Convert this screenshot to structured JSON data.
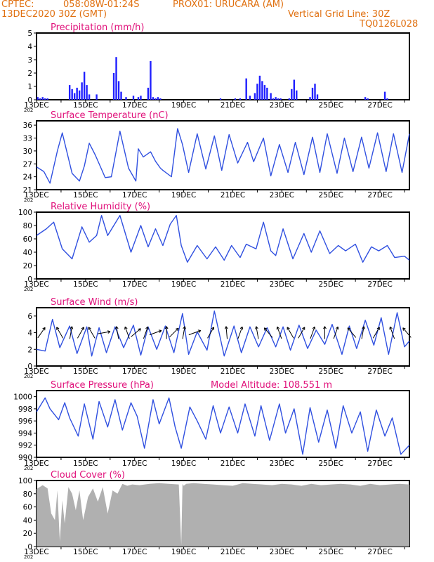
{
  "header": {
    "source": "CPTEC:",
    "location": "058:08W-01:24S",
    "station": "PROX01: URUCARA (AM)",
    "date": "13DEC2020 30Z (GMT)",
    "grid_note": "Vertical Grid Line: 30Z",
    "model_id": "TQ0126L028"
  },
  "x_axis": {
    "labels": [
      "13DEC",
      "15DEC",
      "17DEC",
      "19DEC",
      "21DEC",
      "23DEC",
      "25DEC",
      "27DEC"
    ],
    "label_days": [
      0,
      2,
      4,
      6,
      8,
      10,
      12,
      14
    ],
    "stub": "202",
    "range_days": [
      0,
      15.2
    ]
  },
  "chart_data": [
    {
      "type": "bar",
      "title": "Precipitation (mm/h)",
      "ylim": [
        0,
        5
      ],
      "yticks": [
        0,
        1,
        2,
        3,
        4,
        5
      ],
      "color": "#2020ff",
      "x_days": [
        0.05,
        0.15,
        0.25,
        0.35,
        0.45,
        1.35,
        1.45,
        1.55,
        1.65,
        1.75,
        1.85,
        1.95,
        2.05,
        2.15,
        2.45,
        3.15,
        3.25,
        3.35,
        3.45,
        3.65,
        3.95,
        4.15,
        4.25,
        4.55,
        4.65,
        4.75,
        4.85,
        4.95,
        5.05,
        7.5,
        8.1,
        8.3,
        8.55,
        8.7,
        8.9,
        9.0,
        9.1,
        9.2,
        9.3,
        9.4,
        9.55,
        9.65,
        9.75,
        9.85,
        9.95,
        10.3,
        10.4,
        10.5,
        10.6,
        11.15,
        11.25,
        11.35,
        11.45,
        13.4,
        13.5,
        14.2,
        14.3
      ],
      "values": [
        0.2,
        0.1,
        0.2,
        0.1,
        0.1,
        1.1,
        0.8,
        0.5,
        0.9,
        0.7,
        1.3,
        2.1,
        1.1,
        0.4,
        0.4,
        2.0,
        3.2,
        1.4,
        0.6,
        0.2,
        0.3,
        0.2,
        0.3,
        0.9,
        2.9,
        0.2,
        0.1,
        0.2,
        0.1,
        0.1,
        0.1,
        0.1,
        1.6,
        0.3,
        0.5,
        1.2,
        1.8,
        1.4,
        1.1,
        0.9,
        0.5,
        0.1,
        0.2,
        0.1,
        0.1,
        0.1,
        0.8,
        1.5,
        0.7,
        0.2,
        0.9,
        1.2,
        0.4,
        0.2,
        0.1,
        0.6,
        0.1
      ]
    },
    {
      "type": "line",
      "title": "Surface Temperature (nC)",
      "ylim": [
        21,
        37
      ],
      "yticks": [
        21,
        24,
        27,
        30,
        33,
        36
      ],
      "color": "#3050e0",
      "x": [
        0,
        0.3,
        0.55,
        0.85,
        1.05,
        1.45,
        1.75,
        1.95,
        2.15,
        2.4,
        2.8,
        3.05,
        3.4,
        3.75,
        4.05,
        4.15,
        4.35,
        4.5,
        4.65,
        4.85,
        5.05,
        5.15,
        5.5,
        5.75,
        5.95,
        6.2,
        6.55,
        6.9,
        7.25,
        7.55,
        7.85,
        8.2,
        8.6,
        8.85,
        9.25,
        9.55,
        9.9,
        10.25,
        10.55,
        10.9,
        11.25,
        11.55,
        11.85,
        12.25,
        12.55,
        12.9,
        13.25,
        13.55,
        13.9,
        14.25,
        14.55,
        14.9,
        15.2
      ],
      "values": [
        26.3,
        25.2,
        22.5,
        30.0,
        34.2,
        24.8,
        23.0,
        26.5,
        31.8,
        29.0,
        23.8,
        24.0,
        34.6,
        26.0,
        23.0,
        30.5,
        28.6,
        29.2,
        29.8,
        27.6,
        26.0,
        25.5,
        24.0,
        35.2,
        31.5,
        25.0,
        34.0,
        25.8,
        33.5,
        25.5,
        33.8,
        27.2,
        32.0,
        27.5,
        33.0,
        24.2,
        31.5,
        25.0,
        32.0,
        24.5,
        33.2,
        25.0,
        34.0,
        24.8,
        33.0,
        25.2,
        33.2,
        26.0,
        34.2,
        25.2,
        34.0,
        25.0,
        34.0
      ]
    },
    {
      "type": "line",
      "title": "Relative Humidity (%)",
      "ylim": [
        0,
        100
      ],
      "yticks": [
        0,
        20,
        40,
        60,
        80,
        100
      ],
      "color": "#3050e0",
      "x": [
        0,
        0.4,
        0.7,
        1.05,
        1.45,
        1.85,
        2.15,
        2.45,
        2.65,
        2.9,
        3.4,
        3.85,
        4.25,
        4.55,
        4.85,
        5.15,
        5.45,
        5.7,
        5.9,
        6.15,
        6.55,
        6.95,
        7.3,
        7.65,
        7.95,
        8.3,
        8.55,
        8.95,
        9.25,
        9.55,
        9.75,
        10.05,
        10.45,
        10.9,
        11.2,
        11.55,
        11.95,
        12.3,
        12.6,
        13.0,
        13.3,
        13.65,
        13.95,
        14.3,
        14.6,
        15.0,
        15.2
      ],
      "values": [
        65,
        75,
        85,
        45,
        30,
        78,
        55,
        65,
        95,
        65,
        95,
        40,
        80,
        48,
        75,
        50,
        82,
        95,
        50,
        25,
        50,
        30,
        48,
        28,
        50,
        32,
        52,
        45,
        85,
        42,
        35,
        75,
        30,
        68,
        40,
        72,
        38,
        50,
        42,
        52,
        25,
        48,
        42,
        50,
        32,
        34,
        28
      ]
    },
    {
      "type": "line",
      "title": "Surface Wind (m/s)",
      "ylim": [
        0,
        7
      ],
      "yticks": [
        0,
        2,
        4,
        6
      ],
      "color": "#3050e0",
      "x": [
        0,
        0.35,
        0.65,
        0.95,
        1.35,
        1.65,
        2.05,
        2.25,
        2.55,
        2.85,
        3.2,
        3.55,
        3.95,
        4.25,
        4.55,
        4.9,
        5.25,
        5.6,
        5.95,
        6.2,
        6.55,
        6.95,
        7.25,
        7.65,
        8.05,
        8.35,
        8.7,
        9.05,
        9.4,
        9.75,
        10.05,
        10.35,
        10.7,
        11.05,
        11.4,
        11.75,
        12.05,
        12.45,
        12.75,
        13.05,
        13.4,
        13.75,
        14.05,
        14.35,
        14.7,
        15.0,
        15.2
      ],
      "values": [
        2.0,
        1.8,
        5.6,
        2.2,
        4.8,
        1.5,
        4.7,
        1.2,
        4.6,
        1.6,
        4.7,
        2.2,
        4.9,
        1.3,
        4.7,
        2.0,
        4.8,
        1.6,
        6.3,
        1.4,
        4.1,
        1.9,
        6.6,
        1.2,
        4.8,
        1.6,
        4.7,
        2.3,
        4.6,
        2.3,
        4.7,
        1.9,
        4.9,
        2.1,
        4.3,
        2.6,
        5.0,
        1.4,
        4.8,
        2.1,
        5.5,
        2.5,
        5.8,
        1.4,
        6.4,
        2.3,
        3.0
      ]
    },
    {
      "type": "line",
      "title": "Surface Pressure (hPa)",
      "subtitle": "Model Altitude: 108.551 m",
      "ylim": [
        990,
        1001
      ],
      "yticks": [
        990,
        992,
        994,
        996,
        998,
        1000
      ],
      "color": "#3050e0",
      "x": [
        0,
        0.35,
        0.55,
        0.9,
        1.15,
        1.35,
        1.7,
        1.95,
        2.3,
        2.55,
        2.9,
        3.2,
        3.5,
        3.85,
        4.1,
        4.4,
        4.75,
        5.0,
        5.4,
        5.65,
        5.9,
        6.25,
        6.55,
        6.9,
        7.2,
        7.5,
        7.85,
        8.2,
        8.5,
        8.9,
        9.15,
        9.5,
        9.9,
        10.15,
        10.5,
        10.85,
        11.15,
        11.5,
        11.85,
        12.2,
        12.5,
        12.85,
        13.2,
        13.5,
        13.85,
        14.2,
        14.5,
        14.85,
        15.2
      ],
      "values": [
        997.5,
        999.8,
        998.0,
        996.2,
        999.0,
        996.5,
        993.5,
        998.8,
        993.0,
        999.2,
        995.0,
        999.5,
        994.5,
        999.0,
        996.8,
        991.5,
        999.5,
        995.5,
        999.8,
        995.0,
        991.5,
        998.3,
        996.0,
        993.0,
        998.5,
        994.0,
        998.3,
        994.0,
        998.8,
        993.5,
        998.5,
        992.8,
        998.8,
        994.0,
        998.0,
        990.5,
        998.2,
        992.5,
        997.8,
        991.5,
        998.5,
        994.0,
        997.5,
        991.0,
        997.8,
        993.5,
        996.5,
        990.5,
        992.0
      ]
    },
    {
      "type": "area",
      "title": "Cloud Cover (%)",
      "ylim": [
        0,
        100
      ],
      "yticks": [
        0,
        20,
        40,
        60,
        80,
        100
      ],
      "color": "#b0b0b0",
      "x": [
        0,
        0.25,
        0.45,
        0.6,
        0.75,
        0.85,
        0.95,
        1.05,
        1.15,
        1.3,
        1.45,
        1.6,
        1.75,
        1.9,
        2.1,
        2.3,
        2.5,
        2.7,
        2.9,
        3.1,
        3.3,
        3.5,
        3.7,
        3.9,
        4.2,
        4.6,
        5.0,
        5.4,
        5.8,
        5.9,
        5.95,
        6.0,
        6.1,
        6.4,
        6.8,
        7.2,
        7.6,
        8.0,
        8.4,
        8.8,
        9.2,
        9.6,
        10.0,
        10.4,
        10.8,
        11.2,
        11.6,
        12.0,
        12.4,
        12.8,
        13.2,
        13.6,
        14.0,
        14.4,
        14.8,
        15.2
      ],
      "values": [
        87,
        93,
        88,
        50,
        40,
        85,
        8,
        70,
        35,
        90,
        80,
        55,
        85,
        40,
        75,
        88,
        68,
        90,
        50,
        85,
        80,
        95,
        92,
        94,
        93,
        95,
        96,
        95,
        94,
        2,
        95,
        92,
        95,
        96,
        95,
        94,
        93,
        92,
        96,
        95,
        94,
        93,
        95,
        94,
        92,
        95,
        93,
        94,
        95,
        94,
        92,
        95,
        93,
        94,
        95,
        94
      ]
    }
  ],
  "wind_arrows": {
    "color": "#000000",
    "x_days": [
      0.2,
      0.95,
      1.4,
      1.8,
      2.25,
      2.75,
      3.3,
      3.7,
      4.05,
      4.45,
      4.85,
      5.3,
      5.6,
      6.0,
      6.45,
      7.1,
      7.75,
      8.3,
      9.0,
      9.45,
      9.9,
      10.35,
      10.8,
      11.25,
      11.75,
      12.2,
      12.85,
      13.3,
      13.85,
      14.5,
      15.1
    ],
    "directions_deg": [
      55,
      120,
      80,
      60,
      120,
      10,
      100,
      110,
      40,
      70,
      20,
      90,
      45,
      80,
      20,
      60,
      95,
      70,
      100,
      130,
      110,
      120,
      60,
      70,
      90,
      70,
      130,
      80,
      60,
      110,
      130
    ]
  }
}
